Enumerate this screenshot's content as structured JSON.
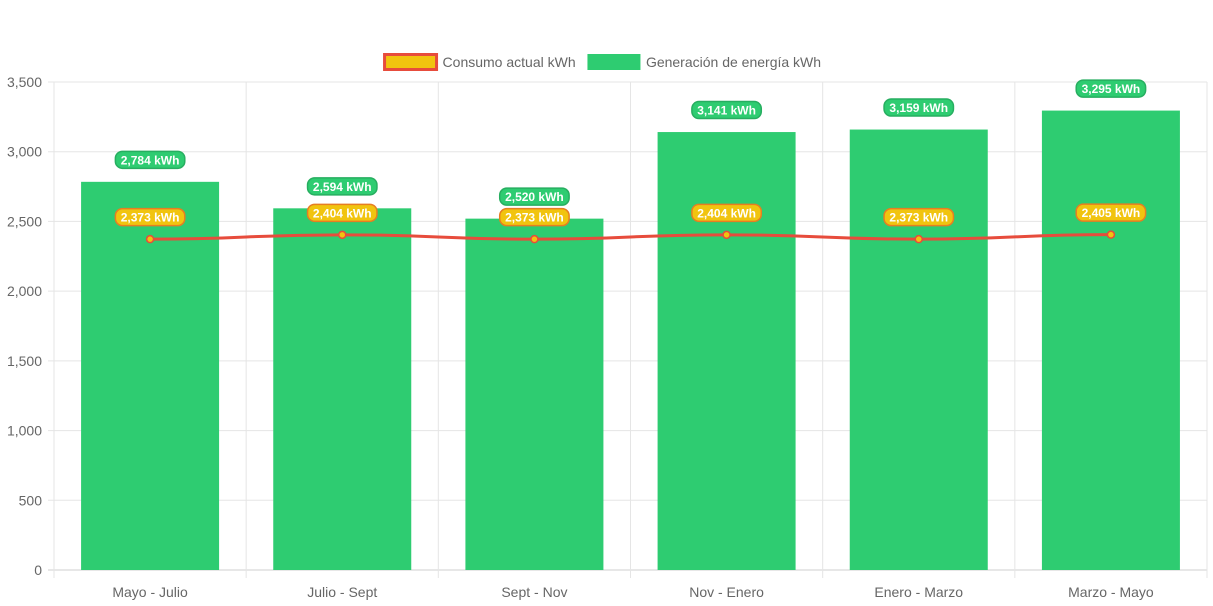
{
  "chart_data": {
    "type": "bar",
    "categories": [
      "Mayo - Julio",
      "Julio - Sept",
      "Sept - Nov",
      "Nov - Enero",
      "Enero - Marzo",
      "Marzo - Mayo"
    ],
    "series": [
      {
        "name": "Consumo actual kWh",
        "type": "line",
        "values": [
          2373,
          2404,
          2373,
          2404,
          2373,
          2405
        ],
        "labels": [
          "2,373 kWh",
          "2,404 kWh",
          "2,373 kWh",
          "2,404 kWh",
          "2,373 kWh",
          "2,405 kWh"
        ],
        "line_color": "#e74c3c",
        "fill_color": "#f1c40f"
      },
      {
        "name": "Generación de energía kWh",
        "type": "bar",
        "values": [
          2784,
          2594,
          2520,
          3141,
          3159,
          3295
        ],
        "labels": [
          "2,784 kWh",
          "2,594 kWh",
          "2,520 kWh",
          "3,141 kWh",
          "3,159 kWh",
          "3,295 kWh"
        ],
        "color": "#2ecc71"
      }
    ],
    "y_ticks": [
      "0",
      "500",
      "1,000",
      "1,500",
      "2,000",
      "2,500",
      "3,000",
      "3,500"
    ],
    "ylim": [
      0,
      3500
    ],
    "grid": true,
    "legend_position": "top"
  }
}
